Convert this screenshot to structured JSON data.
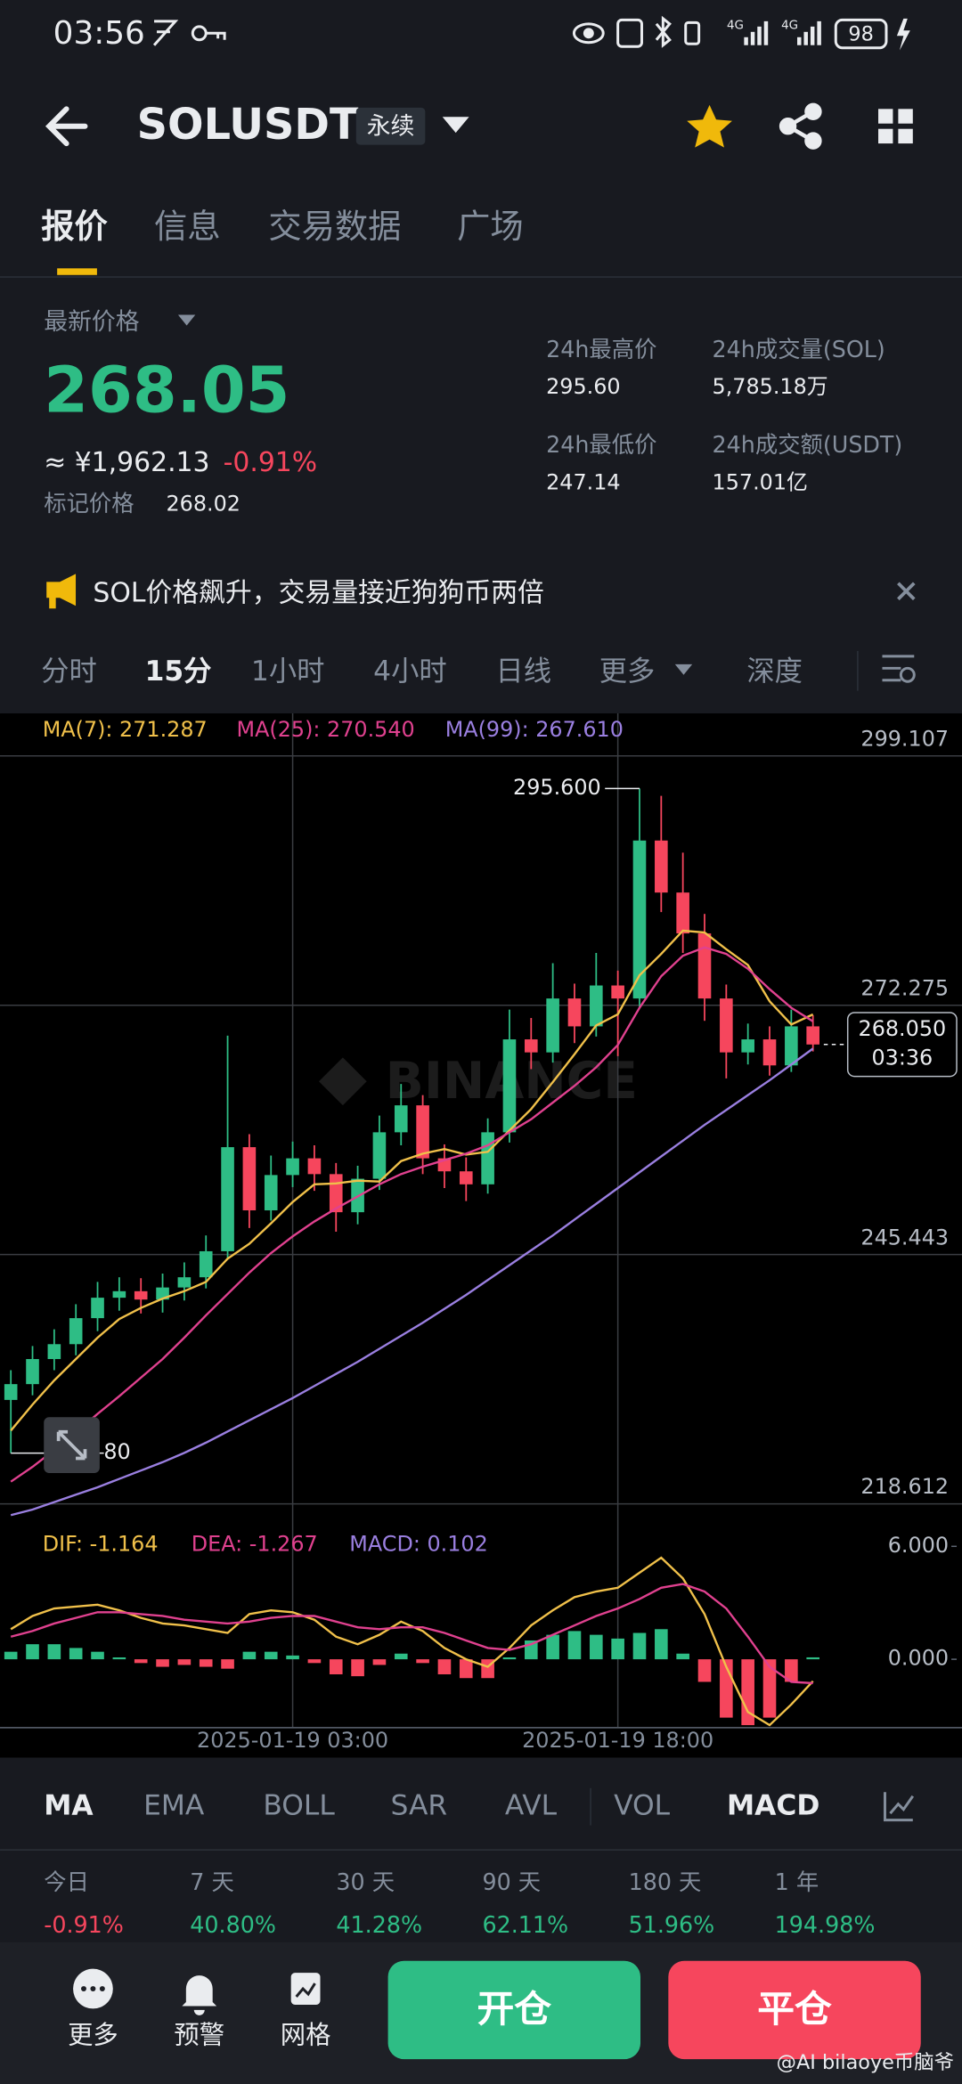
{
  "status_bar": {
    "time": "03:56",
    "network": [
      "4G",
      "4G"
    ],
    "battery": "98"
  },
  "header": {
    "symbol": "SOLUSDT",
    "badge": "永续"
  },
  "tabs": {
    "items": [
      "报价",
      "信息",
      "交易数据",
      "广场"
    ],
    "active": 0
  },
  "price_panel": {
    "latest_label": "最新价格",
    "latest_price": "268.05",
    "cny_price": "≈ ¥1,962.13",
    "change": "-0.91%",
    "mark_label": "标记价格",
    "mark_price": "268.02",
    "stats": [
      {
        "label": "24h最高价",
        "value": "295.60"
      },
      {
        "label": "24h成交量(SOL)",
        "value": "5,785.18万"
      },
      {
        "label": "24h最低价",
        "value": "247.14"
      },
      {
        "label": "24h成交额(USDT)",
        "value": "157.01亿"
      }
    ]
  },
  "notice": {
    "text": "SOL价格飙升，交易量接近狗狗币两倍"
  },
  "intervals": {
    "items": [
      "分时",
      "15分",
      "1小时",
      "4小时",
      "日线",
      "更多",
      "深度"
    ],
    "active": 1
  },
  "chart_data": [
    {
      "type": "candlestick",
      "categories": [
        null,
        null,
        null,
        null,
        null,
        null,
        null,
        null,
        null,
        null,
        null,
        null,
        null,
        "2025-01-19 03:00",
        null,
        null,
        null,
        null,
        null,
        null,
        null,
        null,
        null,
        null,
        null,
        null,
        null,
        null,
        "2025-01-19 18:00",
        null,
        null,
        null,
        null,
        null,
        null,
        null,
        null,
        null
      ],
      "open": [
        229.8,
        231.5,
        234.2,
        235.8,
        238.6,
        240.8,
        241.5,
        240.6,
        241.9,
        243.0,
        245.8,
        257.0,
        250.2,
        254.0,
        255.8,
        254.1,
        250.0,
        253.6,
        258.6,
        261.5,
        255.8,
        254.4,
        253.0,
        258.6,
        268.6,
        267.2,
        273.0,
        270.0,
        274.4,
        273.0,
        290.0,
        284.4,
        280.0,
        273.0,
        267.2,
        268.6,
        265.8,
        270.0
      ],
      "high": [
        233.0,
        235.6,
        237.4,
        240.1,
        242.5,
        243.0,
        242.9,
        243.4,
        244.6,
        247.5,
        269.0,
        258.4,
        256.1,
        257.6,
        257.2,
        255.3,
        255.0,
        260.4,
        263.8,
        262.6,
        257.3,
        255.9,
        260.1,
        271.8,
        270.9,
        276.8,
        274.6,
        277.9,
        276.0,
        295.6,
        294.8,
        288.7,
        282.1,
        274.5,
        270.3,
        270.0,
        271.8,
        271.2
      ],
      "low": [
        224.08,
        230.3,
        233.0,
        234.6,
        237.2,
        239.4,
        239.1,
        239.2,
        240.5,
        241.8,
        244.9,
        248.3,
        249.1,
        252.7,
        252.3,
        247.9,
        248.7,
        252.4,
        257.2,
        254.1,
        252.6,
        251.2,
        252.0,
        257.5,
        265.4,
        266.1,
        268.2,
        268.9,
        266.8,
        272.1,
        282.3,
        277.9,
        270.6,
        264.4,
        265.9,
        264.7,
        265.1,
        267.3
      ],
      "close": [
        231.5,
        234.2,
        235.8,
        238.6,
        240.8,
        241.5,
        240.6,
        241.9,
        243.0,
        245.8,
        257.0,
        250.2,
        254.0,
        255.8,
        254.1,
        250.0,
        253.6,
        258.6,
        261.5,
        255.8,
        254.4,
        253.0,
        258.6,
        268.6,
        267.2,
        273.0,
        270.0,
        274.4,
        273.0,
        290.0,
        284.4,
        280.0,
        273.0,
        267.2,
        268.6,
        265.8,
        270.0,
        268.05
      ],
      "up_color": "#2ebd85",
      "down_color": "#f6465d",
      "series": [
        {
          "name": "MA(7): 271.287",
          "color": "#f0c04a",
          "values": [
            226.5,
            229.3,
            231.9,
            234.2,
            236.5,
            238.5,
            239.7,
            240.7,
            241.5,
            242.5,
            245.0,
            246.6,
            248.8,
            251.1,
            253.0,
            253.1,
            253.4,
            253.3,
            255.5,
            256.3,
            256.8,
            256.2,
            256.5,
            258.8,
            261.1,
            264.0,
            267.0,
            270.1,
            271.3,
            275.5,
            277.8,
            280.3,
            280.1,
            278.3,
            276.6,
            272.7,
            270.2,
            271.287
          ]
        },
        {
          "name": "MA(25): 270.540",
          "color": "#e0418f",
          "values": [
            221.0,
            222.6,
            224.4,
            226.3,
            228.3,
            230.2,
            232.2,
            234.2,
            236.5,
            238.9,
            241.2,
            243.5,
            245.6,
            247.4,
            249.0,
            250.4,
            251.7,
            253.0,
            254.1,
            254.9,
            255.6,
            256.3,
            257.2,
            258.6,
            260.0,
            261.8,
            263.6,
            265.6,
            268.0,
            272.0,
            275.4,
            277.6,
            278.5,
            277.8,
            276.2,
            274.0,
            272.0,
            270.54
          ]
        },
        {
          "name": "MA(99): 267.610",
          "color": "#9a7fe0",
          "values": [
            217.4,
            218.0,
            218.8,
            219.6,
            220.4,
            221.3,
            222.2,
            223.1,
            224.1,
            225.2,
            226.4,
            227.6,
            228.8,
            230.0,
            231.3,
            232.6,
            233.9,
            235.3,
            236.7,
            238.1,
            239.6,
            241.1,
            242.7,
            244.3,
            245.9,
            247.5,
            249.2,
            250.9,
            252.6,
            254.3,
            256.0,
            257.7,
            259.4,
            261.0,
            262.6,
            264.2,
            265.9,
            267.61
          ]
        }
      ],
      "ylim": [
        216.9,
        303.68
      ],
      "yticks": [
        299.107,
        272.275,
        245.443,
        218.612
      ],
      "grid": true,
      "high_marker": {
        "value": 295.6,
        "label": "295.600"
      },
      "low_marker_label": "80",
      "last_price": {
        "value": 268.05,
        "label": "268.050"
      },
      "countdown": "03:36",
      "watermark": "BINANCE"
    },
    {
      "type": "macd",
      "series": [
        {
          "name": "DIF: -1.164",
          "color": "#f0c04a",
          "values": [
            1.6,
            2.3,
            2.7,
            2.8,
            2.9,
            2.6,
            2.2,
            1.9,
            1.8,
            1.6,
            1.4,
            2.4,
            2.6,
            2.5,
            2.1,
            1.2,
            0.8,
            1.3,
            2.0,
            1.5,
            0.6,
            0.0,
            -0.4,
            0.6,
            1.8,
            2.6,
            3.3,
            3.6,
            3.8,
            4.6,
            5.4,
            4.3,
            2.4,
            -0.4,
            -2.8,
            -3.5,
            -2.4,
            -1.164
          ]
        },
        {
          "name": "DEA: -1.267",
          "color": "#e0418f",
          "values": [
            1.2,
            1.5,
            1.9,
            2.2,
            2.5,
            2.5,
            2.4,
            2.3,
            2.1,
            2.0,
            1.9,
            2.0,
            2.2,
            2.3,
            2.3,
            2.0,
            1.7,
            1.6,
            1.7,
            1.7,
            1.4,
            1.0,
            0.6,
            0.5,
            0.8,
            1.3,
            1.8,
            2.3,
            2.7,
            3.2,
            3.8,
            4.0,
            3.6,
            2.7,
            1.2,
            -0.4,
            -1.2,
            -1.267
          ]
        }
      ],
      "histogram": {
        "name": "MACD: 0.102",
        "color": "#9a7fe0",
        "up_color": "#2ebd85",
        "down_color": "#f6465d",
        "values": [
          0.4,
          0.8,
          0.8,
          0.6,
          0.4,
          0.1,
          -0.2,
          -0.4,
          -0.3,
          -0.4,
          -0.5,
          0.4,
          0.4,
          0.2,
          -0.2,
          -0.8,
          -0.9,
          -0.3,
          0.3,
          -0.2,
          -0.8,
          -1.0,
          -1.0,
          0.1,
          1.0,
          1.3,
          1.5,
          1.3,
          1.1,
          1.4,
          1.6,
          0.3,
          -1.2,
          -3.1,
          -3.5,
          -3.1,
          -1.2,
          0.102
        ]
      },
      "ylim": [
        -3.6,
        7.34
      ],
      "yticks": [
        {
          "value": 6,
          "label": "6.000"
        },
        {
          "value": 0,
          "label": "0.000"
        }
      ]
    }
  ],
  "indicators": {
    "items": [
      "MA",
      "EMA",
      "BOLL",
      "SAR",
      "AVL",
      "VOL",
      "MACD"
    ],
    "active": [
      0,
      6
    ]
  },
  "performance": {
    "labels": [
      "今日",
      "7 天",
      "30 天",
      "90 天",
      "180 天",
      "1 年"
    ],
    "values": [
      "-0.91%",
      "40.80%",
      "41.28%",
      "62.11%",
      "51.96%",
      "194.98%"
    ]
  },
  "bottom_bar": {
    "tools": [
      "更多",
      "预警",
      "网格"
    ],
    "open": "开仓",
    "close": "平仓"
  },
  "watermark": "@AI bilaoye币脑爷"
}
